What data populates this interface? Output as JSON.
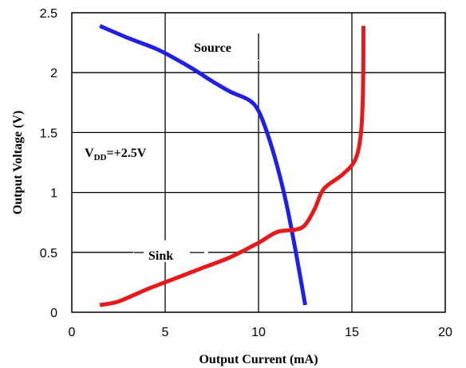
{
  "chart_data": {
    "type": "line",
    "xlabel": "Output Current (mA)",
    "ylabel": "Output Voltage (V)",
    "xlim": [
      0,
      20
    ],
    "ylim": [
      0,
      2.5
    ],
    "x_ticks": [
      "0",
      "5",
      "10",
      "15",
      "20"
    ],
    "y_ticks": [
      "0",
      "0.5",
      "1",
      "1.5",
      "2",
      "2.5"
    ],
    "grid": true,
    "annotations": {
      "condition_main": "V",
      "condition_sub": "DD",
      "condition_rest": "=+2.5V",
      "source_label": "Source",
      "sink_label": "Sink"
    },
    "series": [
      {
        "name": "Source",
        "color": "#1f1fe6",
        "points": [
          [
            1.5,
            2.39
          ],
          [
            3.0,
            2.29
          ],
          [
            4.5,
            2.2
          ],
          [
            5.5,
            2.12
          ],
          [
            6.5,
            2.03
          ],
          [
            7.5,
            1.93
          ],
          [
            8.5,
            1.84
          ],
          [
            9.5,
            1.77
          ],
          [
            10.0,
            1.68
          ],
          [
            10.5,
            1.48
          ],
          [
            11.0,
            1.22
          ],
          [
            11.5,
            0.9
          ],
          [
            12.0,
            0.5
          ],
          [
            12.5,
            0.06
          ]
        ]
      },
      {
        "name": "Sink",
        "color": "#e61a1a",
        "points": [
          [
            1.5,
            0.06
          ],
          [
            2.5,
            0.09
          ],
          [
            4.0,
            0.19
          ],
          [
            5.5,
            0.28
          ],
          [
            7.0,
            0.37
          ],
          [
            8.5,
            0.46
          ],
          [
            10.0,
            0.58
          ],
          [
            11.0,
            0.67
          ],
          [
            12.0,
            0.69
          ],
          [
            12.5,
            0.73
          ],
          [
            13.0,
            0.86
          ],
          [
            13.5,
            1.03
          ],
          [
            14.5,
            1.15
          ],
          [
            15.2,
            1.28
          ],
          [
            15.5,
            1.52
          ],
          [
            15.6,
            1.9
          ],
          [
            15.62,
            2.39
          ]
        ]
      }
    ]
  }
}
